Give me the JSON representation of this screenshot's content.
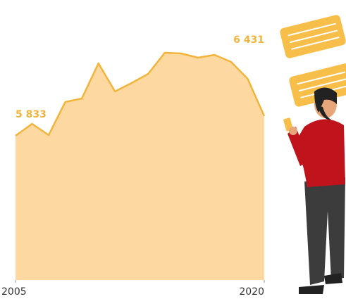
{
  "chart_data": {
    "type": "area",
    "x": [
      2005,
      2006,
      2007,
      2008,
      2009,
      2010,
      2011,
      2012,
      2013,
      2014,
      2015,
      2016,
      2017,
      2018,
      2019,
      2020
    ],
    "values": [
      5833,
      6196,
      5854,
      6858,
      6965,
      8033,
      7179,
      7435,
      7713,
      8353,
      8332,
      8204,
      8289,
      8076,
      7563,
      6431
    ],
    "value_labels": [
      "5 833",
      null,
      null,
      null,
      null,
      null,
      null,
      null,
      null,
      null,
      null,
      null,
      null,
      null,
      null,
      "6 431"
    ],
    "color": "#f3b43c",
    "fill": "#fdd9a1",
    "xlim": [
      2005,
      2020
    ],
    "xticks": [
      2005,
      2020
    ],
    "ylim": [
      1454,
      9955
    ]
  }
}
